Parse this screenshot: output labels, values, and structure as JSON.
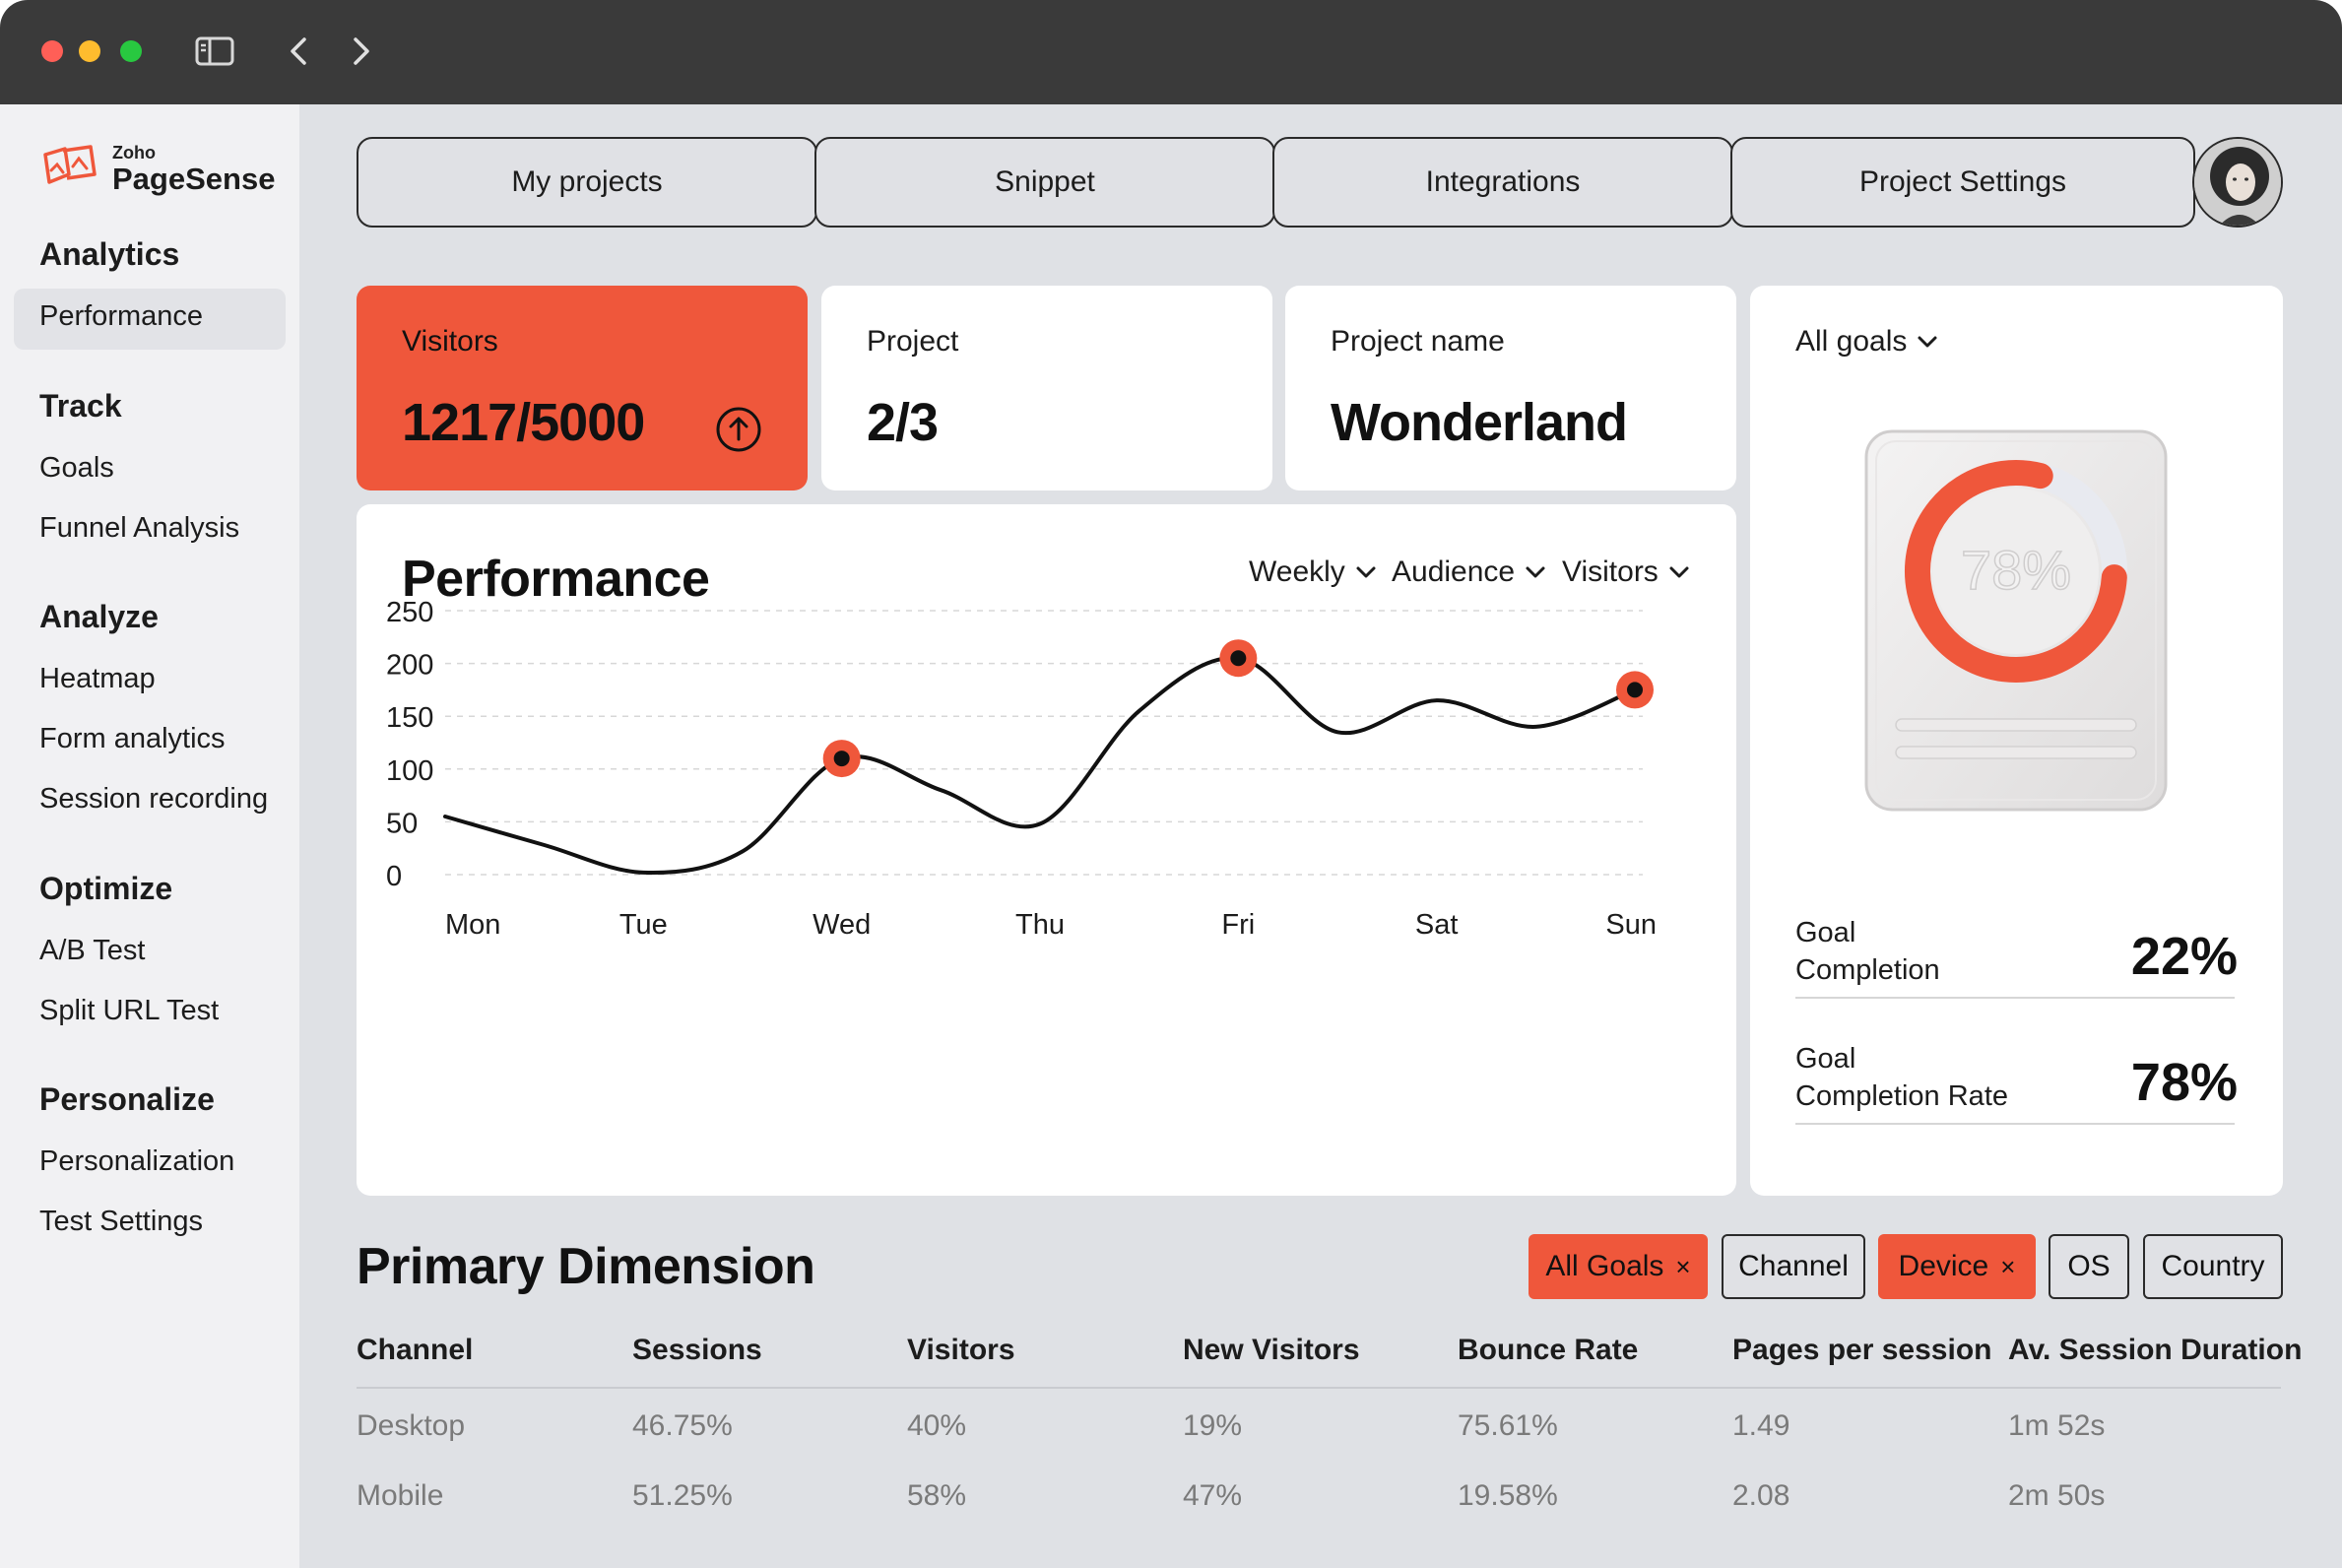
{
  "app": {
    "logo_small": "Zoho",
    "logo_big": "PageSense"
  },
  "sidebar": {
    "sections": [
      {
        "title": "Analytics",
        "items": [
          "Performance"
        ]
      },
      {
        "title": "Track",
        "items": [
          "Goals",
          "Funnel Analysis"
        ]
      },
      {
        "title": "Analyze",
        "items": [
          "Heatmap",
          "Form analytics",
          "Session recording"
        ]
      },
      {
        "title": "Optimize",
        "items": [
          "A/B Test",
          "Split URL Test"
        ]
      },
      {
        "title": "Personalize",
        "items": [
          "Personalization",
          "Test Settings"
        ]
      }
    ],
    "active_item": "Performance"
  },
  "tabs": [
    "My projects",
    "Snippet",
    "Integrations",
    "Project Settings"
  ],
  "stats": {
    "visitors": {
      "label": "Visitors",
      "value": "1217/5000"
    },
    "project": {
      "label": "Project",
      "value": "2/3"
    },
    "project_name": {
      "label": "Project name",
      "value": "Wonderland"
    }
  },
  "goals": {
    "dropdown": "All goals",
    "gauge_text": "78%",
    "gauge_fraction": 0.78,
    "rows": [
      {
        "label_line1": "Goal",
        "label_line2": "Completion",
        "value": "22%"
      },
      {
        "label_line1": "Goal",
        "label_line2": "Completion Rate",
        "value": "78%"
      }
    ]
  },
  "performance": {
    "title": "Performance",
    "filters": [
      "Weekly",
      "Audience",
      "Visitors"
    ]
  },
  "chart_data": {
    "type": "line",
    "title": "Performance",
    "categories": [
      "Mon",
      "Tue",
      "Wed",
      "Thu",
      "Fri",
      "Sat",
      "Sun"
    ],
    "yticks": [
      250,
      200,
      150,
      100,
      50,
      0
    ],
    "ylim": [
      0,
      250
    ],
    "x": [
      0,
      0.5,
      1,
      1.5,
      2,
      2.5,
      3,
      3.5,
      4,
      4.5,
      5,
      5.5,
      6
    ],
    "series": [
      {
        "values": [
          55,
          28,
          2,
          22,
          110,
          80,
          48,
          155,
          205,
          135,
          165,
          140,
          175
        ]
      }
    ],
    "highlighted_points": [
      {
        "x": 2,
        "y": 110
      },
      {
        "x": 4,
        "y": 205
      },
      {
        "x": 6,
        "y": 175
      }
    ],
    "grid": true,
    "accent": "#ef573b"
  },
  "primary_dimension": {
    "title": "Primary Dimension",
    "chips": [
      {
        "label": "All Goals",
        "active": true,
        "close": "×"
      },
      {
        "label": "Channel",
        "active": false
      },
      {
        "label": "Device",
        "active": true,
        "close": "×"
      },
      {
        "label": "OS",
        "active": false
      },
      {
        "label": "Country",
        "active": false
      }
    ],
    "columns": [
      "Channel",
      "Sessions",
      "Visitors",
      "New Visitors",
      "Bounce Rate",
      "Pages per session",
      "Av. Session Duration"
    ],
    "rows": [
      [
        "Desktop",
        "46.75%",
        "40%",
        "19%",
        "75.61%",
        "1.49",
        "1m 52s"
      ],
      [
        "Mobile",
        "51.25%",
        "58%",
        "47%",
        "19.58%",
        "2.08",
        "2m 50s"
      ]
    ]
  },
  "colors": {
    "accent": "#ef573b",
    "titlebar": "#3a3a3a",
    "background": "#dfe1e5"
  }
}
